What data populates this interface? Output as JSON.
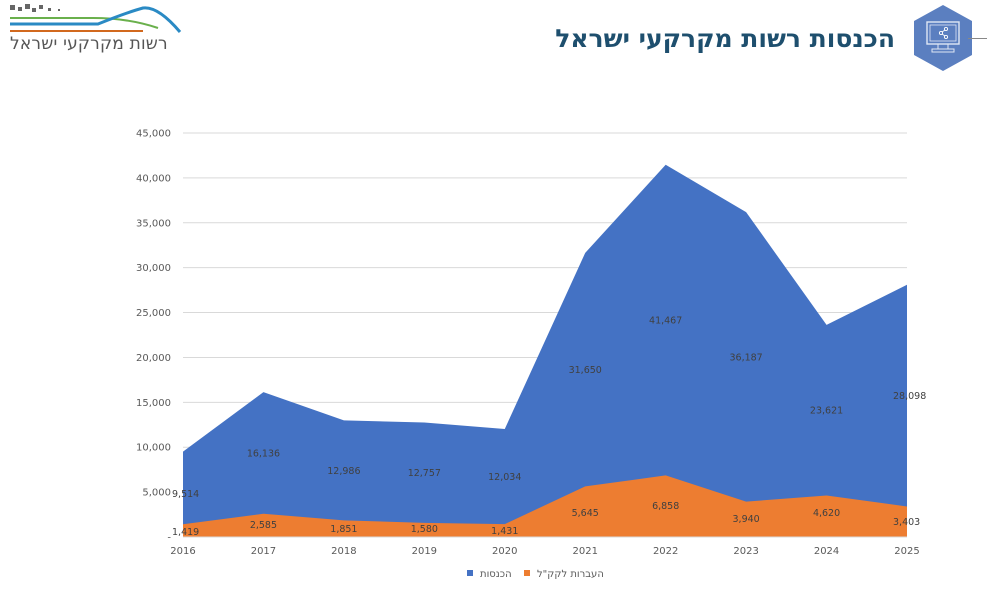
{
  "header": {
    "logo_text": "רשות מקרקעי ישראל",
    "title": "הכנסות רשות מקרקעי ישראל",
    "badge_icon": "monitor-share-icon"
  },
  "colors": {
    "series_income": "#4472c4",
    "series_transfers": "#ed7d31",
    "title": "#1e4f6e",
    "badge": "#5b7fc0"
  },
  "chart_data": {
    "type": "area",
    "title": "",
    "xlabel": "",
    "ylabel": "",
    "ylim": [
      0,
      45000
    ],
    "y_ticks": [
      0,
      5000,
      10000,
      15000,
      20000,
      25000,
      30000,
      35000,
      40000,
      45000
    ],
    "y_tick_labels": [
      "-",
      "5,000",
      "10,000",
      "15,000",
      "20,000",
      "25,000",
      "30,000",
      "35,000",
      "40,000",
      "45,000"
    ],
    "grid": true,
    "legend_position": "bottom",
    "categories": [
      "2016",
      "2017",
      "2018",
      "2019",
      "2020",
      "2021",
      "2022",
      "2023",
      "2024",
      "2025"
    ],
    "series": [
      {
        "name": "הכנסות",
        "color": "#4472c4",
        "values": [
          9514,
          16136,
          12986,
          12757,
          12034,
          31650,
          41467,
          36187,
          23621,
          28098
        ],
        "labels": [
          "9,514",
          "16,136",
          "12,986",
          "12,757",
          "12,034",
          "31,650",
          "41,467",
          "36,187",
          "23,621",
          "28,098"
        ]
      },
      {
        "name": "העברות לקק\"ל",
        "color": "#ed7d31",
        "values": [
          1419,
          2585,
          1851,
          1580,
          1431,
          5645,
          6858,
          3940,
          4620,
          3403
        ],
        "labels": [
          "1,419",
          "2,585",
          "1,851",
          "1,580",
          "1,431",
          "5,645",
          "6,858",
          "3,940",
          "4,620",
          "3,403"
        ]
      }
    ]
  }
}
